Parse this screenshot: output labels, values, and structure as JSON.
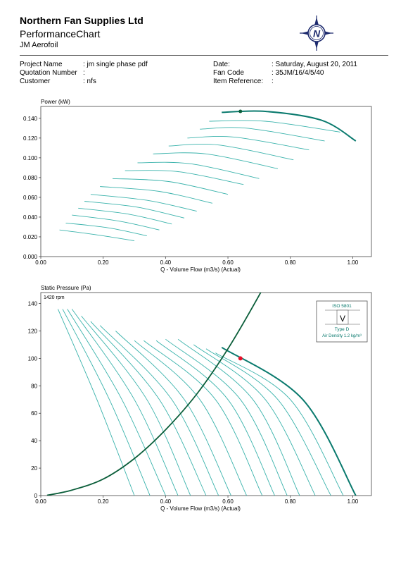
{
  "header": {
    "company": "Northern Fan Supplies Ltd",
    "subtitle": "PerformanceChart",
    "model": "JM Aerofoil"
  },
  "logo": {
    "icon": "compass-n-icon",
    "letter": "N",
    "color": "#1d2a6e"
  },
  "info": {
    "project_name_label": "Project Name",
    "project_name_value": ": jm single phase pdf",
    "quotation_label": "Quotation Number",
    "quotation_value": ":",
    "customer_label": "Customer",
    "customer_value": ": nfs",
    "date_label": "Date:",
    "date_value": ": Saturday, August 20, 2011",
    "fan_code_label": "Fan Code",
    "fan_code_value": ": 35JM/16/4/5/40",
    "item_ref_label": "Item Reference:",
    "item_ref_value": ":"
  },
  "colors": {
    "curve_light": "#3bb3ac",
    "curve_dark": "#0a7a6e",
    "system": "#0b5e3a",
    "point": "#e8102a"
  },
  "chart_data": [
    {
      "type": "line",
      "ylabel": "Power (kW)",
      "xlabel": "Q - Volume Flow (m3/s) (Actual)",
      "xlim": [
        0,
        1.06
      ],
      "ylim": [
        0,
        0.152
      ],
      "x_ticks": [
        "0.00",
        "0.20",
        "0.40",
        "0.60",
        "0.80",
        "1.00"
      ],
      "y_ticks": [
        "0.000",
        "0.020",
        "0.040",
        "0.060",
        "0.080",
        "0.100",
        "0.120",
        "0.140"
      ],
      "operating_point": {
        "x": 0.64,
        "y": 0.147
      },
      "series": [
        {
          "points": [
            [
              0.06,
              0.027
            ],
            [
              0.18,
              0.022
            ],
            [
              0.3,
              0.016
            ]
          ]
        },
        {
          "points": [
            [
              0.08,
              0.034
            ],
            [
              0.22,
              0.029
            ],
            [
              0.34,
              0.021
            ]
          ]
        },
        {
          "points": [
            [
              0.1,
              0.042
            ],
            [
              0.25,
              0.036
            ],
            [
              0.38,
              0.027
            ]
          ]
        },
        {
          "points": [
            [
              0.12,
              0.049
            ],
            [
              0.28,
              0.043
            ],
            [
              0.42,
              0.033
            ]
          ]
        },
        {
          "points": [
            [
              0.14,
              0.056
            ],
            [
              0.31,
              0.05
            ],
            [
              0.46,
              0.039
            ]
          ]
        },
        {
          "points": [
            [
              0.16,
              0.063
            ],
            [
              0.34,
              0.057
            ],
            [
              0.5,
              0.046
            ]
          ]
        },
        {
          "points": [
            [
              0.19,
              0.071
            ],
            [
              0.38,
              0.066
            ],
            [
              0.55,
              0.054
            ]
          ]
        },
        {
          "points": [
            [
              0.23,
              0.079
            ],
            [
              0.41,
              0.076
            ],
            [
              0.6,
              0.063
            ]
          ]
        },
        {
          "points": [
            [
              0.27,
              0.087
            ],
            [
              0.44,
              0.086
            ],
            [
              0.65,
              0.073
            ]
          ]
        },
        {
          "points": [
            [
              0.31,
              0.095
            ],
            [
              0.48,
              0.094
            ],
            [
              0.7,
              0.079
            ]
          ]
        },
        {
          "points": [
            [
              0.36,
              0.104
            ],
            [
              0.53,
              0.104
            ],
            [
              0.76,
              0.089
            ]
          ]
        },
        {
          "points": [
            [
              0.41,
              0.112
            ],
            [
              0.57,
              0.113
            ],
            [
              0.81,
              0.098
            ]
          ]
        },
        {
          "points": [
            [
              0.47,
              0.12
            ],
            [
              0.62,
              0.121
            ],
            [
              0.86,
              0.108
            ]
          ]
        },
        {
          "points": [
            [
              0.51,
              0.129
            ],
            [
              0.66,
              0.13
            ],
            [
              0.91,
              0.117
            ]
          ]
        },
        {
          "points": [
            [
              0.54,
              0.137
            ],
            [
              0.72,
              0.137
            ],
            [
              0.96,
              0.126
            ]
          ]
        },
        {
          "points": [
            [
              0.58,
              0.146
            ],
            [
              0.72,
              0.147
            ],
            [
              0.9,
              0.138
            ],
            [
              1.01,
              0.117
            ]
          ],
          "highlight": true
        }
      ]
    },
    {
      "type": "line",
      "ylabel": "Static Pressure (Pa)",
      "xlabel": "Q - Volume Flow (m3/s) (Actual)",
      "annotation": "1420 rpm",
      "xlim": [
        0,
        1.06
      ],
      "ylim": [
        0,
        148
      ],
      "x_ticks": [
        "0.00",
        "0.20",
        "0.40",
        "0.60",
        "0.80",
        "1.00"
      ],
      "y_ticks": [
        "0",
        "20",
        "40",
        "60",
        "80",
        "100",
        "120",
        "140"
      ],
      "operating_point": {
        "x": 0.64,
        "y": 100
      },
      "system_curve": {
        "points": [
          [
            0.02,
            0.2
          ],
          [
            0.1,
            4
          ],
          [
            0.2,
            12
          ],
          [
            0.3,
            27
          ],
          [
            0.4,
            48
          ],
          [
            0.5,
            74
          ],
          [
            0.6,
            107
          ],
          [
            0.7,
            146
          ],
          [
            0.78,
            180
          ]
        ]
      },
      "series": [
        {
          "points": [
            [
              0.055,
              136
            ],
            [
              0.18,
              70
            ],
            [
              0.3,
              0
            ]
          ]
        },
        {
          "points": [
            [
              0.07,
              136
            ],
            [
              0.22,
              70
            ],
            [
              0.35,
              0
            ]
          ]
        },
        {
          "points": [
            [
              0.085,
              136
            ],
            [
              0.26,
              70
            ],
            [
              0.4,
              0
            ]
          ]
        },
        {
          "points": [
            [
              0.1,
              136
            ],
            [
              0.3,
              70
            ],
            [
              0.44,
              0
            ]
          ]
        },
        {
          "points": [
            [
              0.13,
              131
            ],
            [
              0.34,
              70
            ],
            [
              0.48,
              0
            ]
          ]
        },
        {
          "points": [
            [
              0.16,
              127
            ],
            [
              0.38,
              70
            ],
            [
              0.53,
              0
            ]
          ]
        },
        {
          "points": [
            [
              0.19,
              124
            ],
            [
              0.42,
              70
            ],
            [
              0.57,
              0
            ]
          ]
        },
        {
          "points": [
            [
              0.24,
              120
            ],
            [
              0.46,
              70
            ],
            [
              0.61,
              0
            ]
          ]
        },
        {
          "points": [
            [
              0.3,
              113
            ],
            [
              0.51,
              70
            ],
            [
              0.66,
              0
            ]
          ]
        },
        {
          "points": [
            [
              0.33,
              113
            ],
            [
              0.56,
              70
            ],
            [
              0.71,
              0
            ]
          ]
        },
        {
          "points": [
            [
              0.37,
              113
            ],
            [
              0.6,
              70
            ],
            [
              0.75,
              0
            ]
          ]
        },
        {
          "points": [
            [
              0.4,
              114
            ],
            [
              0.64,
              70
            ],
            [
              0.79,
              0
            ]
          ]
        },
        {
          "points": [
            [
              0.44,
              114
            ],
            [
              0.68,
              70
            ],
            [
              0.83,
              0
            ]
          ]
        },
        {
          "points": [
            [
              0.49,
              110
            ],
            [
              0.72,
              70
            ],
            [
              0.88,
              0
            ]
          ]
        },
        {
          "points": [
            [
              0.53,
              107
            ],
            [
              0.76,
              70
            ],
            [
              0.93,
              0
            ]
          ]
        },
        {
          "points": [
            [
              0.56,
              104
            ],
            [
              0.8,
              70
            ],
            [
              0.97,
              0
            ]
          ]
        },
        {
          "points": [
            [
              0.58,
              108
            ],
            [
              0.84,
              70
            ],
            [
              1.01,
              0
            ]
          ],
          "highlight": true
        }
      ],
      "legend_box": {
        "standard": "ISO 5801",
        "symbol": "V",
        "type_label": "Type  D",
        "density_label": "Air Density 1.2 kg/m³"
      }
    }
  ]
}
